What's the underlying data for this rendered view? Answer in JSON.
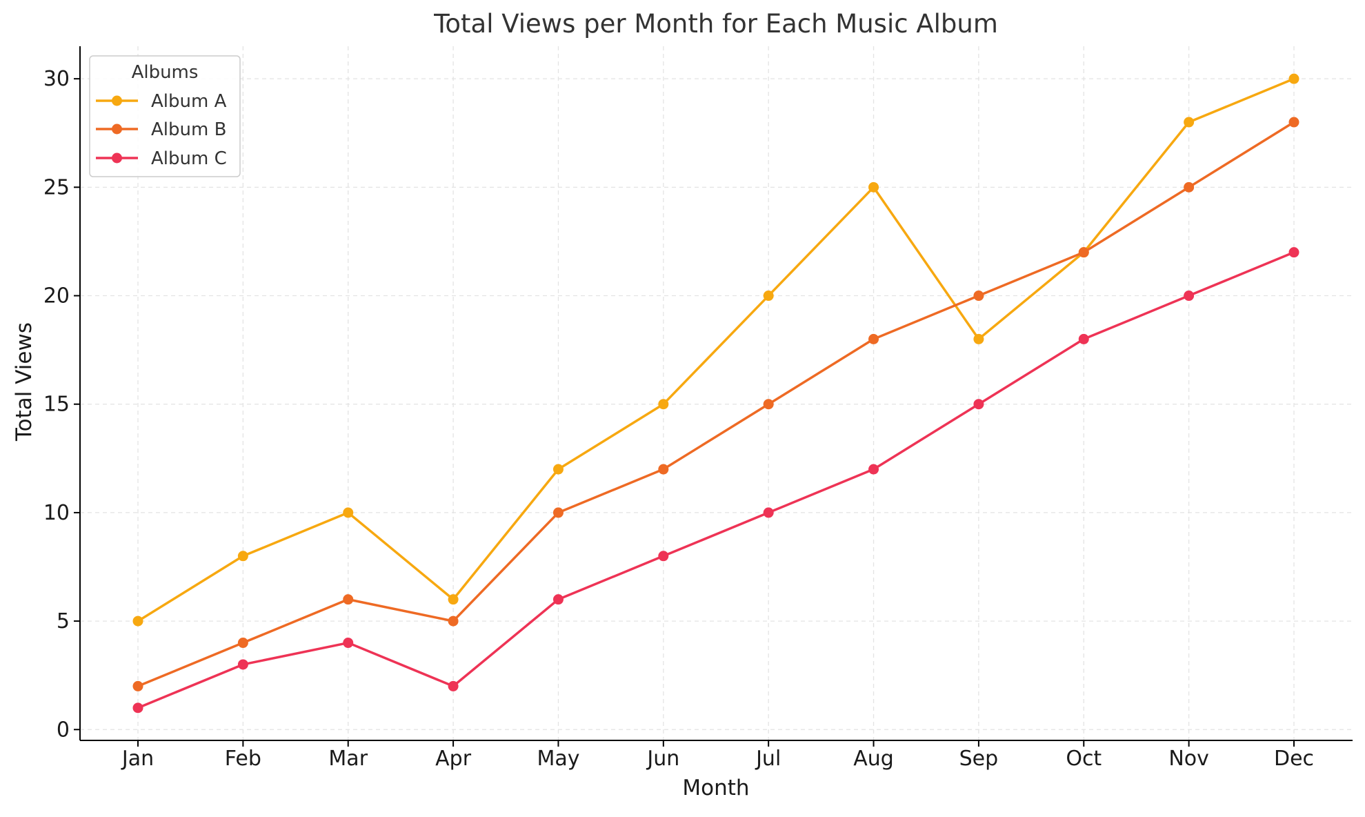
{
  "chart_data": {
    "type": "line",
    "title": "Total Views per Month for Each Music Album",
    "xlabel": "Month",
    "ylabel": "Total Views",
    "categories": [
      "Jan",
      "Feb",
      "Mar",
      "Apr",
      "May",
      "Jun",
      "Jul",
      "Aug",
      "Sep",
      "Oct",
      "Nov",
      "Dec"
    ],
    "ylim": [
      -0.5,
      31.5
    ],
    "yticks": [
      0,
      5,
      10,
      15,
      20,
      25,
      30
    ],
    "grid": true,
    "grid_style": "dashed",
    "legend": {
      "title": "Albums",
      "placement": "top-left"
    },
    "series": [
      {
        "name": "Album A",
        "color": "#F7A810",
        "values": [
          5,
          8,
          10,
          6,
          12,
          15,
          20,
          25,
          18,
          22,
          28,
          30
        ]
      },
      {
        "name": "Album B",
        "color": "#EE6A24",
        "values": [
          2,
          4,
          6,
          5,
          10,
          12,
          15,
          18,
          20,
          22,
          25,
          28
        ]
      },
      {
        "name": "Album C",
        "color": "#EE3355",
        "values": [
          1,
          3,
          4,
          2,
          6,
          8,
          10,
          12,
          15,
          18,
          20,
          22
        ]
      }
    ]
  }
}
